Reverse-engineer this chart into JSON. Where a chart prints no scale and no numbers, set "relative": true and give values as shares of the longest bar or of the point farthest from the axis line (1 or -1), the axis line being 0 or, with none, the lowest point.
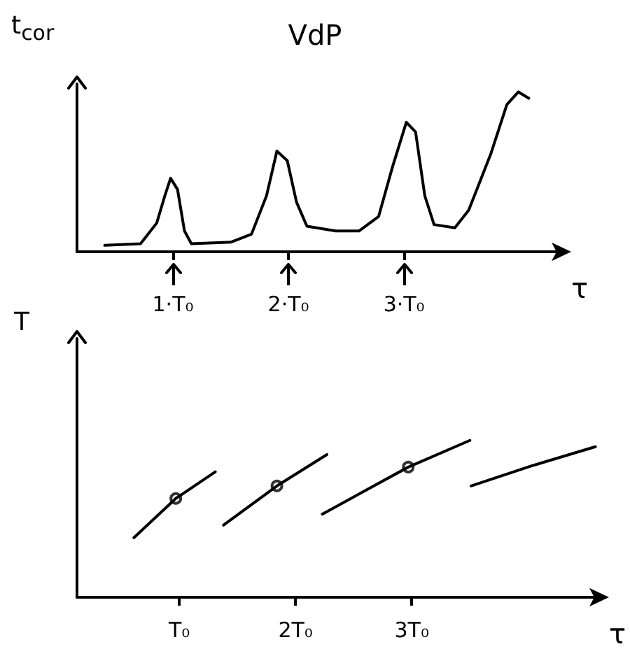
{
  "chart_data": [
    {
      "type": "line",
      "title": "VdP",
      "ylabel": "t$_{cor}$",
      "xlabel": "τ",
      "relative": true,
      "grid": false,
      "marker": "none",
      "xlim": [
        0.17,
        4.35
      ],
      "xticks": [
        {
          "value": 1,
          "label": "1·T₀"
        },
        {
          "value": 2,
          "label": "2·T₀"
        },
        {
          "value": 3,
          "label": "3·T₀"
        }
      ],
      "series": [
        {
          "color": "#000000",
          "x": [
            0.41,
            0.72,
            0.86,
            0.93,
            0.98,
            1.04,
            1.1,
            1.16,
            1.5,
            1.68,
            1.81,
            1.9,
            1.99,
            2.07,
            2.16,
            2.41,
            2.61,
            2.78,
            2.9,
            3.02,
            3.1,
            3.18,
            3.26,
            3.44,
            3.56,
            3.75,
            3.89,
            3.99,
            4.08
          ],
          "values": [
            0.04,
            0.05,
            0.18,
            0.35,
            0.46,
            0.39,
            0.13,
            0.05,
            0.06,
            0.11,
            0.35,
            0.63,
            0.57,
            0.31,
            0.16,
            0.13,
            0.13,
            0.22,
            0.53,
            0.81,
            0.75,
            0.35,
            0.17,
            0.15,
            0.26,
            0.61,
            0.92,
            1,
            0.96
          ]
        }
      ]
    },
    {
      "type": "line",
      "ylabel": "T",
      "xlabel": "τ",
      "relative": true,
      "grid": false,
      "marker": "none",
      "xlim": [
        0.12,
        4.6
      ],
      "xticks": [
        {
          "value": 1,
          "label": "T₀"
        },
        {
          "value": 2,
          "label": "2T₀"
        },
        {
          "value": 3,
          "label": "3T₀"
        }
      ],
      "series": [
        {
          "color": "#000000",
          "x": [
            0.61,
            0.97,
            1.31
          ],
          "values": [
            0.38,
            0.63,
            0.8
          ]
        },
        {
          "color": "#000000",
          "x": [
            1.38,
            1.84,
            2.27
          ],
          "values": [
            0.46,
            0.71,
            0.91
          ]
        },
        {
          "color": "#000000",
          "x": [
            2.23,
            2.97,
            3.5
          ],
          "values": [
            0.53,
            0.83,
            1
          ]
        },
        {
          "color": "#000000",
          "x": [
            3.51,
            4.04,
            4.58
          ],
          "values": [
            0.71,
            0.84,
            0.96
          ]
        },
        {
          "type": "scatter",
          "color": "#000000",
          "marker": "circle",
          "x": [
            0.97,
            1.84,
            2.97
          ],
          "values": [
            0.63,
            0.71,
            0.83
          ]
        }
      ]
    }
  ]
}
